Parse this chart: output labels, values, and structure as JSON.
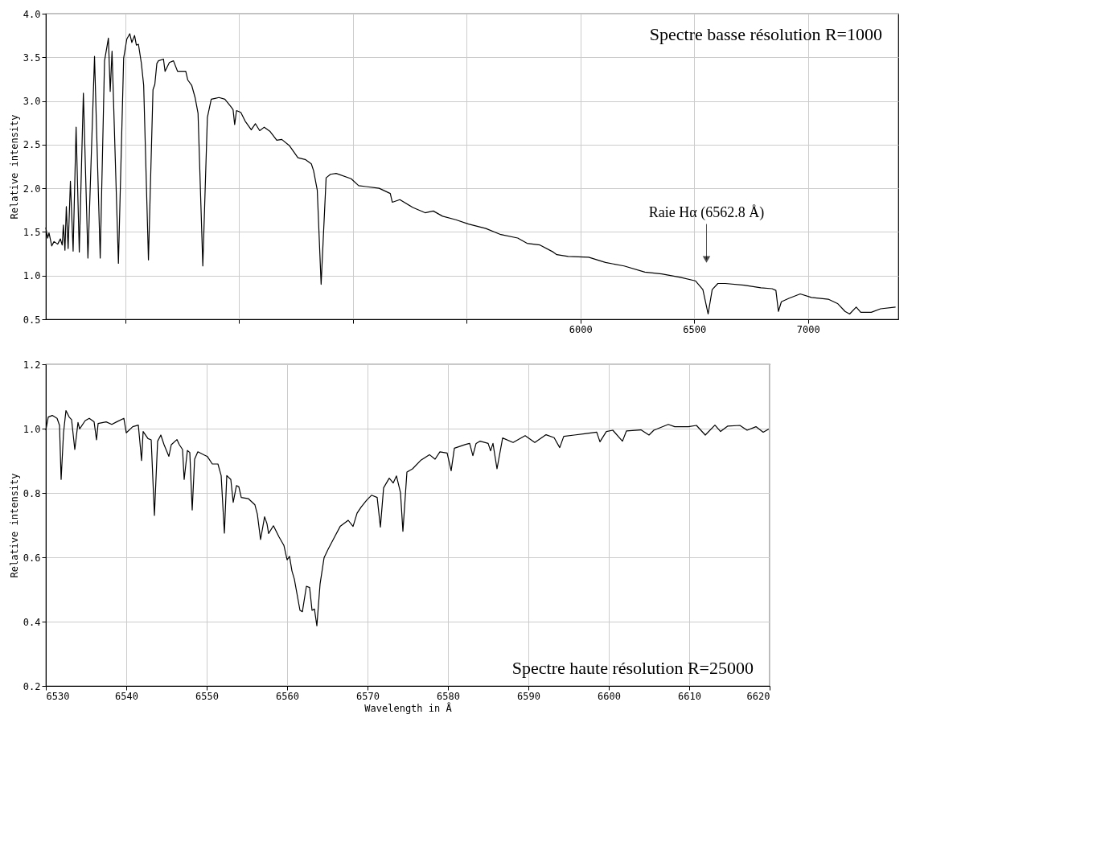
{
  "chart_data": [
    {
      "type": "line",
      "title": "Spectre basse résolution R=1000",
      "ylabel": "Relative intensity",
      "color": "#000000",
      "x": [
        3650,
        3658,
        3664,
        3676,
        3686,
        3702,
        3714,
        3722,
        3727,
        3734,
        3740,
        3748,
        3758,
        3770,
        3783,
        3797,
        3815,
        3835,
        3864,
        3889,
        3908,
        3925,
        3933,
        3941,
        3969,
        3992,
        4006,
        4019,
        4028,
        4040,
        4048,
        4057,
        4070,
        4080,
        4101,
        4121,
        4129,
        4138,
        4145,
        4167,
        4174,
        4193,
        4211,
        4229,
        4265,
        4274,
        4291,
        4306,
        4319,
        4340,
        4360,
        4377,
        4394,
        4411,
        4437,
        4462,
        4473,
        4480,
        4488,
        4507,
        4526,
        4553,
        4571,
        4590,
        4610,
        4636,
        4665,
        4687,
        4720,
        4758,
        4790,
        4817,
        4827,
        4843,
        4860,
        4882,
        4901,
        4926,
        4992,
        5025,
        5057,
        5115,
        5164,
        5173,
        5206,
        5263,
        5317,
        5353,
        5394,
        5452,
        5508,
        5584,
        5650,
        5724,
        5765,
        5822,
        5880,
        5896,
        5946,
        6036,
        6110,
        6192,
        6283,
        6357,
        6439,
        6505,
        6538,
        6561,
        6579,
        6604,
        6636,
        6719,
        6793,
        6842,
        6859,
        6870,
        6883,
        6916,
        6966,
        7015,
        7089,
        7130,
        7163,
        7183,
        7212,
        7232,
        7278,
        7319,
        7385
      ],
      "values": [
        1.55,
        1.43,
        1.49,
        1.34,
        1.39,
        1.36,
        1.42,
        1.35,
        1.58,
        1.29,
        1.79,
        1.31,
        2.08,
        1.28,
        2.7,
        1.27,
        3.09,
        1.2,
        3.51,
        1.2,
        3.46,
        3.72,
        3.11,
        3.57,
        1.14,
        3.49,
        3.71,
        3.77,
        3.67,
        3.75,
        3.64,
        3.65,
        3.43,
        3.18,
        1.18,
        3.13,
        3.19,
        3.43,
        3.46,
        3.48,
        3.34,
        3.44,
        3.46,
        3.34,
        3.34,
        3.24,
        3.18,
        3.04,
        2.86,
        1.11,
        2.81,
        3.02,
        3.03,
        3.04,
        3.02,
        2.94,
        2.9,
        2.73,
        2.89,
        2.87,
        2.77,
        2.67,
        2.74,
        2.66,
        2.7,
        2.65,
        2.55,
        2.56,
        2.49,
        2.35,
        2.33,
        2.28,
        2.2,
        1.98,
        0.9,
        2.12,
        2.16,
        2.17,
        2.11,
        2.03,
        2.02,
        2.0,
        1.94,
        1.84,
        1.87,
        1.78,
        1.72,
        1.74,
        1.68,
        1.64,
        1.59,
        1.54,
        1.47,
        1.43,
        1.37,
        1.35,
        1.27,
        1.24,
        1.22,
        1.21,
        1.15,
        1.11,
        1.04,
        1.02,
        0.98,
        0.94,
        0.84,
        0.56,
        0.84,
        0.91,
        0.91,
        0.89,
        0.86,
        0.85,
        0.83,
        0.59,
        0.7,
        0.74,
        0.79,
        0.75,
        0.73,
        0.68,
        0.59,
        0.56,
        0.64,
        0.58,
        0.58,
        0.62,
        0.64
      ],
      "xlim": [
        3650,
        7397
      ],
      "ylim": [
        0.5,
        4.0
      ],
      "xticks": [
        {
          "value": 4000,
          "label": null
        },
        {
          "value": 4500,
          "label": null
        },
        {
          "value": 5000,
          "label": null
        },
        {
          "value": 5500,
          "label": null
        },
        6000,
        6500,
        7000
      ],
      "yticks": [
        0.5,
        {
          "value": 1,
          "label": "1.0"
        },
        1.5,
        {
          "value": 2,
          "label": "2.0"
        },
        2.5,
        {
          "value": 3,
          "label": "3.0"
        },
        3.5,
        {
          "value": 4,
          "label": "4.0"
        }
      ],
      "grid": true,
      "line_style": "solid",
      "annotations": [
        "Raie Hα (6562.8 Å)"
      ]
    },
    {
      "type": "line",
      "title": "Spectre haute résolution R=25000",
      "xlabel": "Wavelength in Å",
      "ylabel": "Relative intensity",
      "color": "#000000",
      "x": [
        6530.0,
        6530.3,
        6530.8,
        6531.4,
        6531.7,
        6531.9,
        6532.2,
        6532.5,
        6532.9,
        6533.2,
        6533.6,
        6534.0,
        6534.2,
        6534.9,
        6535.4,
        6536.0,
        6536.3,
        6536.5,
        6537.5,
        6538.2,
        6538.8,
        6539.7,
        6540.0,
        6540.8,
        6541.5,
        6541.7,
        6541.9,
        6542.1,
        6542.7,
        6543.1,
        6543.5,
        6543.9,
        6544.3,
        6544.7,
        6545.3,
        6545.6,
        6546.3,
        6546.6,
        6547.0,
        6547.2,
        6547.6,
        6547.9,
        6548.2,
        6548.5,
        6548.9,
        6550.1,
        6550.7,
        6551.4,
        6551.8,
        6552.2,
        6552.5,
        6553.0,
        6553.3,
        6553.7,
        6554.0,
        6554.3,
        6555.2,
        6556.0,
        6556.3,
        6556.7,
        6557.2,
        6557.5,
        6557.7,
        6558.3,
        6559.0,
        6559.6,
        6560.0,
        6560.3,
        6560.6,
        6560.9,
        6561.6,
        6561.9,
        6562.4,
        6562.8,
        6563.1,
        6563.4,
        6563.7,
        6564.1,
        6564.6,
        6565.1,
        6565.9,
        6566.6,
        6567.6,
        6568.2,
        6568.7,
        6569.2,
        6569.9,
        6570.5,
        6571.2,
        6571.6,
        6572.0,
        6572.7,
        6573.2,
        6573.6,
        6574.1,
        6574.4,
        6574.9,
        6575.6,
        6576.6,
        6577.7,
        6578.4,
        6579.0,
        6579.9,
        6580.4,
        6580.8,
        6582.2,
        6582.7,
        6583.1,
        6583.5,
        6584.0,
        6585.0,
        6585.3,
        6585.6,
        6586.1,
        6586.8,
        6588.1,
        6589.6,
        6590.8,
        6592.2,
        6593.2,
        6593.9,
        6594.4,
        6595.7,
        6597.0,
        6598.5,
        6598.9,
        6599.7,
        6600.5,
        6601.7,
        6602.2,
        6604.0,
        6605.0,
        6605.6,
        6607.4,
        6608.2,
        6609.9,
        6610.9,
        6612.0,
        6613.2,
        6613.9,
        6614.8,
        6616.3,
        6617.2,
        6618.3,
        6619.2,
        6619.9
      ],
      "values": [
        0.995,
        1.036,
        1.041,
        1.032,
        1.01,
        0.842,
        0.987,
        1.056,
        1.036,
        1.028,
        0.935,
        1.019,
        0.999,
        1.025,
        1.032,
        1.021,
        0.965,
        1.016,
        1.021,
        1.013,
        1.021,
        1.032,
        0.987,
        1.006,
        1.011,
        0.957,
        0.901,
        0.991,
        0.969,
        0.965,
        0.73,
        0.961,
        0.98,
        0.95,
        0.914,
        0.95,
        0.966,
        0.95,
        0.935,
        0.842,
        0.932,
        0.926,
        0.747,
        0.905,
        0.928,
        0.913,
        0.89,
        0.89,
        0.854,
        0.675,
        0.854,
        0.842,
        0.771,
        0.823,
        0.819,
        0.786,
        0.782,
        0.763,
        0.734,
        0.655,
        0.726,
        0.704,
        0.674,
        0.698,
        0.663,
        0.637,
        0.592,
        0.603,
        0.558,
        0.532,
        0.435,
        0.431,
        0.51,
        0.506,
        0.435,
        0.439,
        0.387,
        0.517,
        0.599,
        0.625,
        0.663,
        0.696,
        0.715,
        0.696,
        0.737,
        0.756,
        0.778,
        0.793,
        0.786,
        0.694,
        0.816,
        0.846,
        0.831,
        0.853,
        0.801,
        0.681,
        0.865,
        0.875,
        0.901,
        0.919,
        0.905,
        0.928,
        0.924,
        0.869,
        0.939,
        0.951,
        0.954,
        0.916,
        0.954,
        0.961,
        0.954,
        0.931,
        0.954,
        0.875,
        0.971,
        0.957,
        0.978,
        0.957,
        0.981,
        0.972,
        0.941,
        0.976,
        0.98,
        0.984,
        0.989,
        0.959,
        0.991,
        0.995,
        0.961,
        0.993,
        0.996,
        0.98,
        0.995,
        1.013,
        1.006,
        1.006,
        1.01,
        0.98,
        1.011,
        0.991,
        1.008,
        1.01,
        0.995,
        1.006,
        0.989,
        0.999
      ],
      "xlim": [
        6530,
        6620
      ],
      "ylim": [
        0.2,
        1.2
      ],
      "xticks": [
        6530,
        6540,
        6550,
        6560,
        6570,
        6580,
        6590,
        6600,
        6610,
        6620
      ],
      "yticks": [
        0.2,
        0.4,
        0.6,
        0.8,
        {
          "value": 1,
          "label": "1.0"
        },
        1.2
      ],
      "grid": true,
      "line_style": "solid"
    }
  ]
}
